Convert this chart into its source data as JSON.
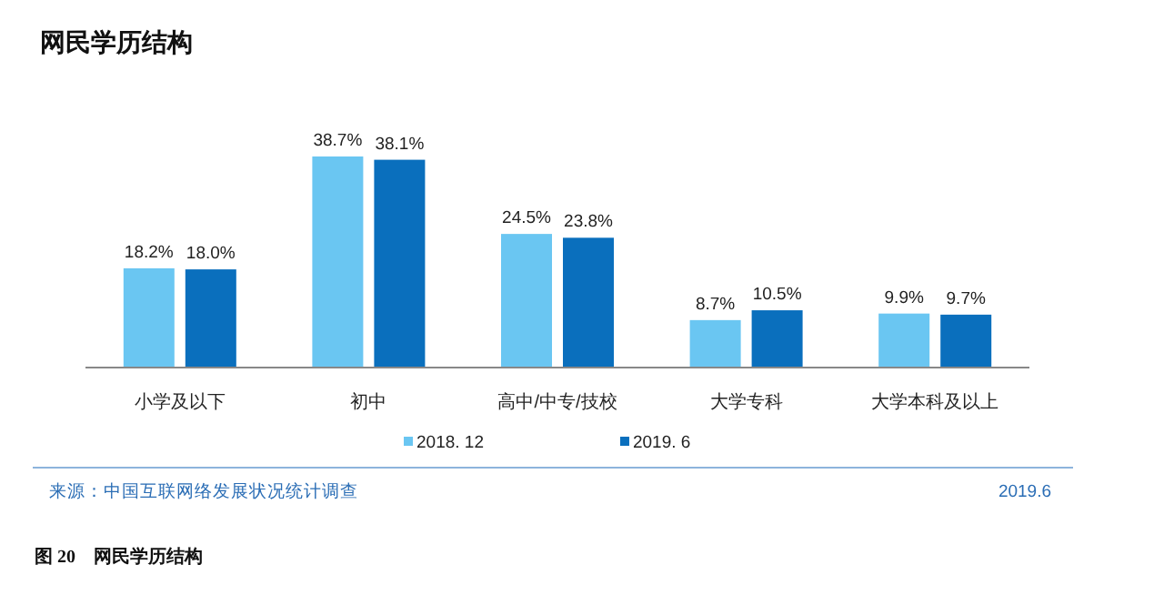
{
  "chart_data": {
    "type": "bar",
    "title": "网民学历结构",
    "categories": [
      "小学及以下",
      "初中",
      "高中/中专/技校",
      "大学专科",
      "大学本科及以上"
    ],
    "series": [
      {
        "name": "2018. 12",
        "color": "#6ac6f2",
        "values": [
          18.2,
          38.7,
          24.5,
          8.7,
          9.9
        ],
        "value_labels": [
          "18.2%",
          "38.7%",
          "24.5%",
          "8.7%",
          "9.9%"
        ]
      },
      {
        "name": "2019. 6",
        "color": "#0a6fbd",
        "values": [
          18.0,
          38.1,
          23.8,
          10.5,
          9.7
        ],
        "value_labels": [
          "18.0%",
          "38.1%",
          "23.8%",
          "10.5%",
          "9.7%"
        ]
      }
    ],
    "legend": "bottom",
    "annotations": [
      "来源：中国互联网络发展状况统计调查",
      "2019.6",
      "图 20　网民学历结构"
    ]
  }
}
